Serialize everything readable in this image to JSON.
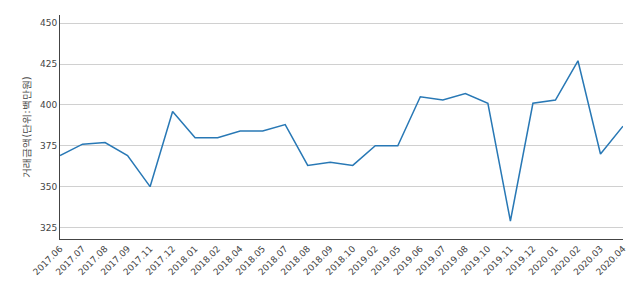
{
  "chart_data": {
    "type": "line",
    "categories": [
      "2017.06",
      "2017.07",
      "2017.08",
      "2017.09",
      "2017.11",
      "2017.12",
      "2018.01",
      "2018.02",
      "2018.04",
      "2018.05",
      "2018.07",
      "2018.08",
      "2018.09",
      "2018.10",
      "2019.02",
      "2019.05",
      "2019.06",
      "2019.07",
      "2019.08",
      "2019.10",
      "2019.11",
      "2019.12",
      "2020.01",
      "2020.02",
      "2020.03",
      "2020.04"
    ],
    "values": [
      369,
      376,
      377,
      369,
      350,
      396,
      380,
      380,
      384,
      384,
      388,
      363,
      365,
      363,
      375,
      375,
      405,
      403,
      407,
      401,
      329,
      401,
      403,
      427,
      370,
      387
    ],
    "color": "#2878b5",
    "ylabel": "거래금액(단위:백만원)",
    "ylim": [
      318,
      455
    ],
    "yticks": [
      325,
      350,
      375,
      400,
      425,
      450
    ],
    "grid": true
  }
}
